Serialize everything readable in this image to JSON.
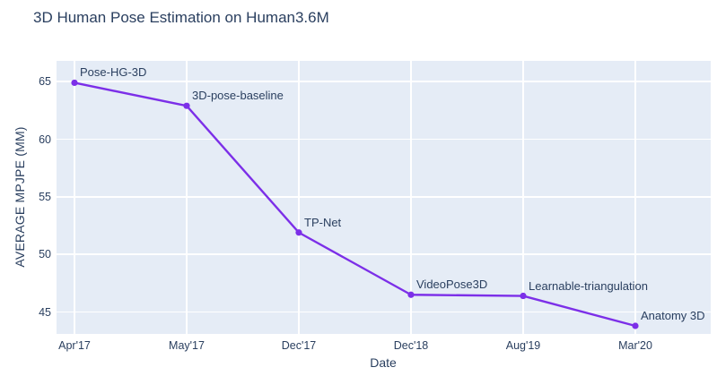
{
  "page": {
    "title": "3D Human Pose Estimation on Human3.6M"
  },
  "colors": {
    "line": "#7C2FE8",
    "plot_background": "#E5ECF6",
    "grid": "#FFFFFF",
    "text": "#2A3F5F"
  },
  "chart_data": {
    "type": "line",
    "title": "3D Human Pose Estimation on Human3.6M",
    "xlabel": "Date",
    "ylabel": "AVERAGE MPJPE (MM)",
    "categories": [
      "Apr'17",
      "May'17",
      "Dec'17",
      "Dec'18",
      "Aug'19",
      "Mar'20"
    ],
    "points": [
      {
        "x": "Apr'17",
        "label": "Pose-HG-3D",
        "value": 64.9
      },
      {
        "x": "May'17",
        "label": "3D-pose-baseline",
        "value": 62.9
      },
      {
        "x": "Dec'17",
        "label": "TP-Net",
        "value": 51.9
      },
      {
        "x": "Dec'18",
        "label": "VideoPose3D",
        "value": 46.5
      },
      {
        "x": "Aug'19",
        "label": "Learnable-triangulation",
        "value": 46.4
      },
      {
        "x": "Mar'20",
        "label": "Anatomy 3D",
        "value": 43.8
      }
    ],
    "yticks": [
      45,
      50,
      55,
      60,
      65
    ],
    "ylim": [
      43.1,
      66.8
    ],
    "grid": true,
    "legend": "none",
    "line_color": "#7C2FE8"
  }
}
